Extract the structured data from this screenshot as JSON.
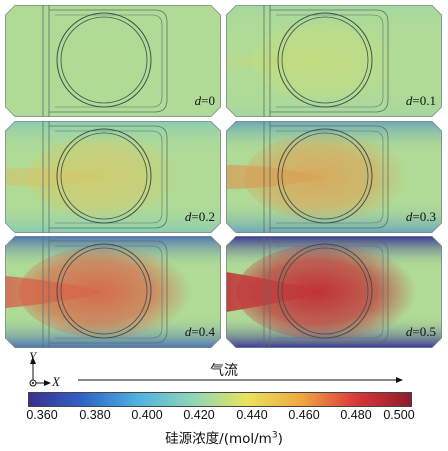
{
  "panels": [
    {
      "id": "p0",
      "label_var": "d",
      "label_val": "=0",
      "level": 0.0
    },
    {
      "id": "p1",
      "label_var": "d",
      "label_val": "=0.1",
      "level": 0.1
    },
    {
      "id": "p2",
      "label_var": "d",
      "label_val": "=0.2",
      "level": 0.2
    },
    {
      "id": "p3",
      "label_var": "d",
      "label_val": "=0.3",
      "level": 0.3
    },
    {
      "id": "p4",
      "label_var": "d",
      "label_val": "=0.4",
      "level": 0.4
    },
    {
      "id": "p5",
      "label_var": "d",
      "label_val": "=0.5",
      "level": 0.5
    }
  ],
  "axes": {
    "y": "Y",
    "x": "X"
  },
  "flow_label": "气流",
  "colorbar": {
    "ticks": [
      "0.360",
      "0.380",
      "0.400",
      "0.420",
      "0.440",
      "0.460",
      "0.480",
      "0.500"
    ],
    "title_main": "硅源浓度/(mol/m",
    "title_sup": "3",
    "title_end": ")",
    "colors": [
      "#3b2f8f",
      "#2f64c8",
      "#4fb2e0",
      "#8fd6b8",
      "#e8e45a",
      "#f0a640",
      "#d8383a",
      "#8e1c2a"
    ]
  }
}
